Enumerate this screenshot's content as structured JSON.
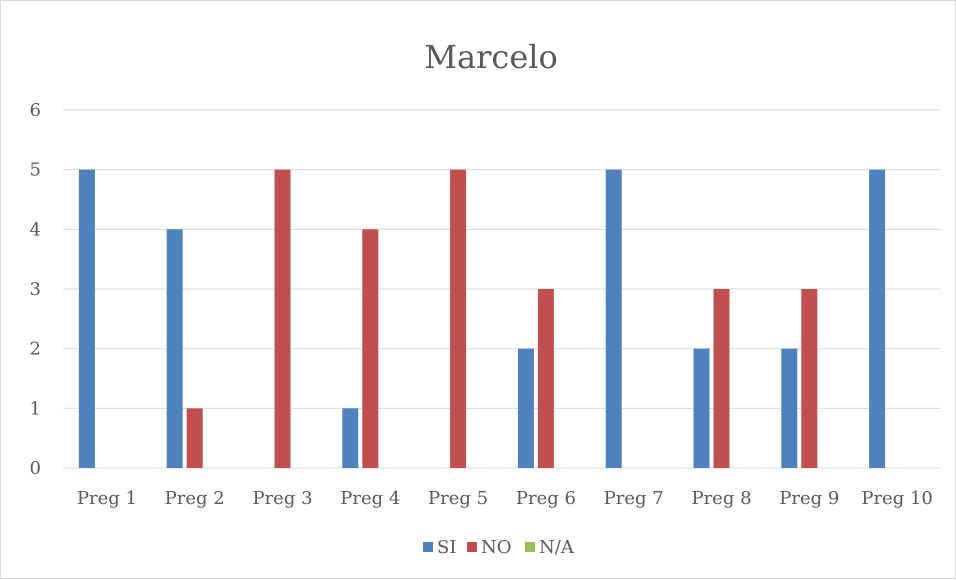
{
  "chart_data": {
    "type": "bar",
    "title": "Marcelo",
    "categories": [
      "Preg 1",
      "Preg 2",
      "Preg 3",
      "Preg 4",
      "Preg 5",
      "Preg 6",
      "Preg 7",
      "Preg 8",
      "Preg 9",
      "Preg 10"
    ],
    "series": [
      {
        "name": "SI",
        "color": "#4f81bd",
        "values": [
          5,
          4,
          0,
          1,
          0,
          2,
          5,
          2,
          2,
          5
        ]
      },
      {
        "name": "NO",
        "color": "#c0504d",
        "values": [
          0,
          1,
          5,
          4,
          5,
          3,
          0,
          3,
          3,
          0
        ]
      },
      {
        "name": "N/A",
        "color": "#9bbb59",
        "values": [
          0,
          0,
          0,
          0,
          0,
          0,
          0,
          0,
          0,
          0
        ]
      }
    ],
    "ylim": [
      0,
      6
    ],
    "yticks": [
      0,
      1,
      2,
      3,
      4,
      5,
      6
    ],
    "grid": true,
    "legend_position": "bottom",
    "gridline_color": "#d9d9d9",
    "text_color": "#595959"
  }
}
